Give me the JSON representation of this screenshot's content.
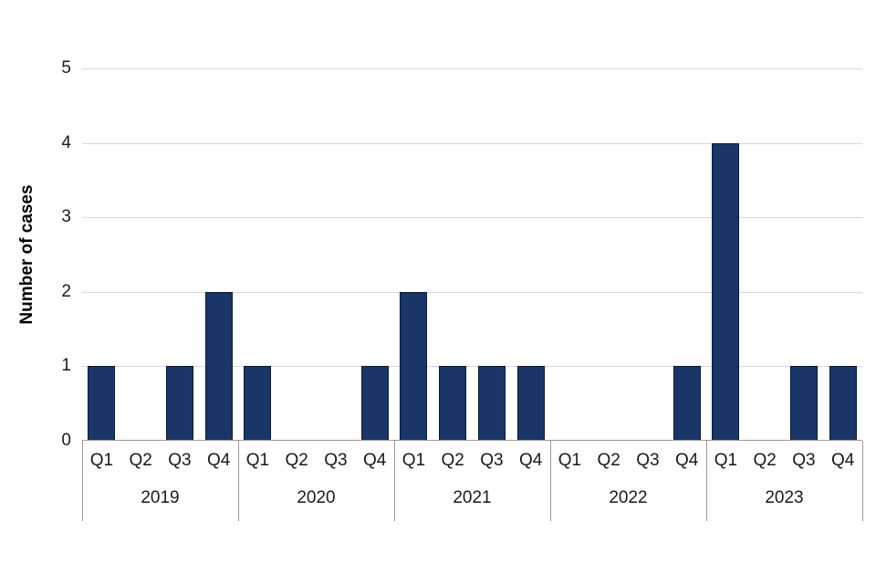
{
  "chart_data": {
    "type": "bar",
    "title": "",
    "ylabel": "Number of cases",
    "xlabel": "",
    "ylim": [
      0,
      5
    ],
    "yticks": [
      0,
      1,
      2,
      3,
      4,
      5
    ],
    "grid": true,
    "legend": "none",
    "bar_color": "#1a3668",
    "bar_border_color": "#0a1a33",
    "grid_color": "#d9d9d9",
    "axis_color": "#9b9b9b",
    "group_labels": [
      "2019",
      "2020",
      "2021",
      "2022",
      "2023"
    ],
    "quarter_labels": [
      "Q1",
      "Q2",
      "Q3",
      "Q4"
    ],
    "series": [
      {
        "name": "2019",
        "values": [
          1,
          0,
          1,
          2
        ]
      },
      {
        "name": "2020",
        "values": [
          1,
          0,
          0,
          1
        ]
      },
      {
        "name": "2021",
        "values": [
          2,
          1,
          1,
          1
        ]
      },
      {
        "name": "2022",
        "values": [
          0,
          0,
          0,
          1
        ]
      },
      {
        "name": "2023",
        "values": [
          4,
          0,
          1,
          1
        ]
      }
    ]
  }
}
